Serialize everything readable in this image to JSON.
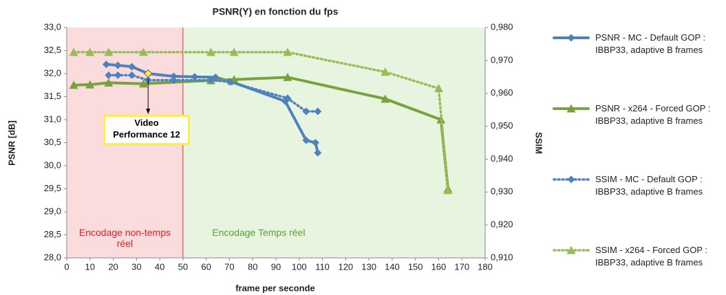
{
  "chart_data": {
    "type": "line",
    "title": "PSNR(Y) en fonction du fps",
    "x_label": "frame per seconde",
    "y_label": "PSNR [dB]",
    "y2_label": "SSIM",
    "xlim": [
      0,
      180
    ],
    "xticks": [
      0,
      10,
      20,
      30,
      40,
      50,
      60,
      70,
      80,
      90,
      100,
      110,
      120,
      130,
      140,
      150,
      160,
      170,
      180
    ],
    "ylim": [
      28,
      33
    ],
    "yticks": [
      {
        "value": 28,
        "label": "28,0"
      },
      {
        "value": 28.5,
        "label": "28,5"
      },
      {
        "value": 29,
        "label": "29,0"
      },
      {
        "value": 29.5,
        "label": "29,5"
      },
      {
        "value": 30,
        "label": "30,0"
      },
      {
        "value": 30.5,
        "label": "30,5"
      },
      {
        "value": 31,
        "label": "31,0"
      },
      {
        "value": 31.5,
        "label": "31,5"
      },
      {
        "value": 32,
        "label": "32,0"
      },
      {
        "value": 32.5,
        "label": "32,5"
      },
      {
        "value": 33,
        "label": "33,0"
      }
    ],
    "y2lim": [
      0.91,
      0.98
    ],
    "y2ticks": [
      {
        "value": 0.91,
        "label": "0,910"
      },
      {
        "value": 0.92,
        "label": "0,920"
      },
      {
        "value": 0.93,
        "label": "0,930"
      },
      {
        "value": 0.94,
        "label": "0,940"
      },
      {
        "value": 0.95,
        "label": "0,950"
      },
      {
        "value": 0.96,
        "label": "0,960"
      },
      {
        "value": 0.97,
        "label": "0,970"
      },
      {
        "value": 0.98,
        "label": "0,980"
      }
    ],
    "regions": [
      {
        "label": "Encodage non-temps réel",
        "from": 0,
        "to": 50,
        "color": "#fadcdc",
        "text_color": "#e02020"
      },
      {
        "label": "Encodage Temps réel",
        "from": 50,
        "to": 180,
        "color": "#e6f4e0",
        "text_color": "#5aa02c"
      }
    ],
    "annotation": {
      "lines": [
        "Video",
        "Performance 12"
      ],
      "x": 35,
      "y": 32
    },
    "series": [
      {
        "name": "PSNR - MC - Default GOP : IBBP33, adaptive B frames",
        "color": "#4f81bd",
        "style": "solid",
        "marker": "diamond",
        "x": [
          17,
          22,
          28,
          35,
          46,
          55,
          64,
          71,
          94,
          103,
          107,
          108
        ],
        "values": [
          32.2,
          32.18,
          32.15,
          32.0,
          31.94,
          31.93,
          31.92,
          31.82,
          31.4,
          30.55,
          30.5,
          30.28
        ]
      },
      {
        "name": "PSNR - x264 - Forced GOP : IBBP33, adaptive B frames",
        "color": "#77a23c",
        "style": "solid",
        "marker": "triangle",
        "x": [
          3,
          10,
          18,
          33,
          62,
          72,
          95,
          137,
          161,
          164
        ],
        "values": [
          31.75,
          31.76,
          31.8,
          31.78,
          31.85,
          31.87,
          31.92,
          31.45,
          31.0,
          29.5
        ]
      },
      {
        "name": "SSIM - MC - Default GOP : IBBP33, adaptive B frames",
        "color": "#4f81bd",
        "style": "dotted",
        "marker": "diamond",
        "axis": "y2",
        "x": [
          18,
          22,
          28,
          35,
          46,
          62,
          70,
          95,
          103,
          108
        ],
        "values": [
          0.9655,
          0.9655,
          0.9655,
          0.964,
          0.964,
          0.964,
          0.9635,
          0.9585,
          0.9545,
          0.9545
        ]
      },
      {
        "name": "SSIM - x264 - Forced GOP : IBBP33, adaptive B frames",
        "color": "#9bbb59",
        "style": "dotted",
        "marker": "triangle",
        "axis": "y2",
        "x": [
          3,
          10,
          18,
          33,
          62,
          72,
          95,
          137,
          160,
          164
        ],
        "values": [
          0.9725,
          0.9725,
          0.9725,
          0.9725,
          0.9725,
          0.9725,
          0.9725,
          0.9665,
          0.9615,
          0.9305
        ]
      }
    ]
  }
}
